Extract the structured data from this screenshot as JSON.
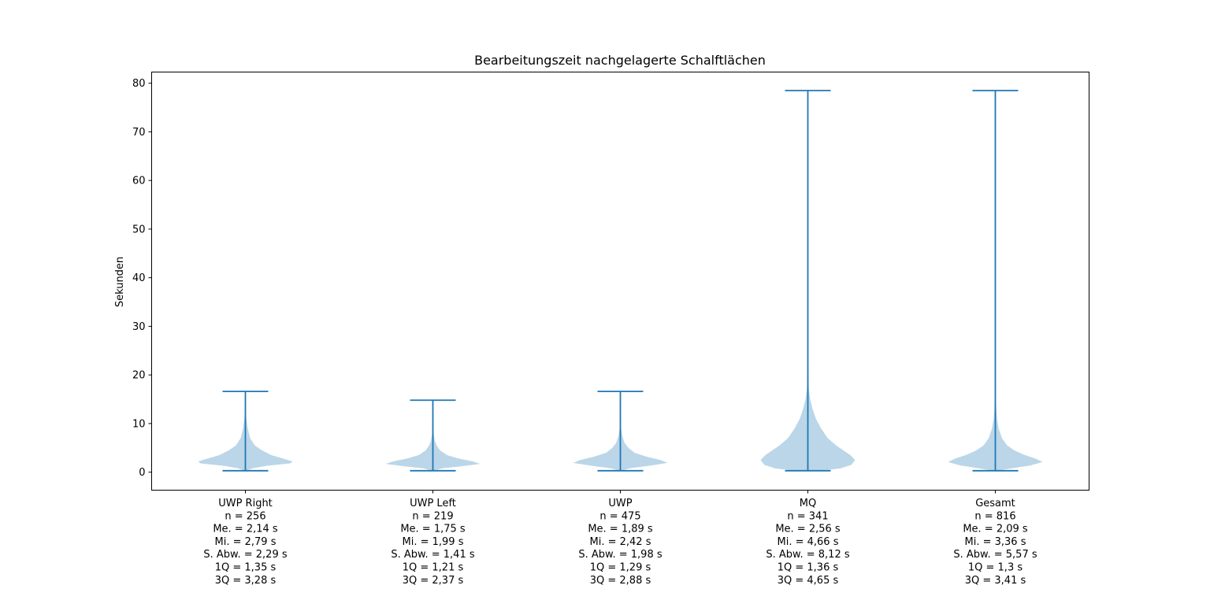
{
  "chart_data": {
    "type": "violin",
    "title": "Bearbeitungszeit nachgelagerte Schalftlächen",
    "xlabel": "",
    "ylabel": "Sekunden",
    "ylim": [
      -3.7,
      82.3
    ],
    "yticks": [
      0,
      10,
      20,
      30,
      40,
      50,
      60,
      70,
      80
    ],
    "grid": false,
    "colors": {
      "body": "#1f77b4",
      "body_alpha": 0.3,
      "line": "#1f77b4"
    },
    "categories": [
      {
        "name": "UWP Right",
        "labels": [
          "UWP Right",
          "n = 256",
          "Me. = 2,14 s",
          "Mi. = 2,79 s",
          "S. Abw. = 2,29 s",
          "1Q = 1,35 s",
          "3Q = 3,28 s"
        ],
        "min": 0.3,
        "max": 16.6,
        "density": [
          [
            0.3,
            0.02
          ],
          [
            0.8,
            0.15
          ],
          [
            1.3,
            0.45
          ],
          [
            1.8,
            0.95
          ],
          [
            2.2,
            1.0
          ],
          [
            2.8,
            0.8
          ],
          [
            3.5,
            0.55
          ],
          [
            4.5,
            0.35
          ],
          [
            5.5,
            0.2
          ],
          [
            7,
            0.1
          ],
          [
            9,
            0.05
          ],
          [
            11,
            0.02
          ],
          [
            13,
            0.01
          ],
          [
            16.6,
            0.005
          ]
        ]
      },
      {
        "name": "UWP Left",
        "labels": [
          "UWP Left",
          "n = 219",
          "Me. = 1,75 s",
          "Mi. = 1,99 s",
          "S. Abw. = 1,41 s",
          "1Q = 1,21 s",
          "3Q = 2,37 s"
        ],
        "min": 0.3,
        "max": 14.8,
        "density": [
          [
            0.3,
            0.02
          ],
          [
            0.8,
            0.2
          ],
          [
            1.2,
            0.6
          ],
          [
            1.7,
            1.0
          ],
          [
            2.2,
            0.85
          ],
          [
            2.8,
            0.55
          ],
          [
            3.5,
            0.3
          ],
          [
            4.5,
            0.15
          ],
          [
            5.5,
            0.08
          ],
          [
            6.5,
            0.04
          ],
          [
            8,
            0.015
          ],
          [
            14.8,
            0.005
          ]
        ]
      },
      {
        "name": "UWP",
        "labels": [
          "UWP",
          "n = 475",
          "Me. = 1,89 s",
          "Mi. = 2,42 s",
          "S. Abw. = 1,98 s",
          "1Q = 1,29 s",
          "3Q = 2,88 s"
        ],
        "min": 0.3,
        "max": 16.6,
        "density": [
          [
            0.3,
            0.02
          ],
          [
            0.8,
            0.2
          ],
          [
            1.3,
            0.6
          ],
          [
            1.9,
            1.0
          ],
          [
            2.5,
            0.85
          ],
          [
            3.2,
            0.55
          ],
          [
            4.0,
            0.3
          ],
          [
            5.0,
            0.17
          ],
          [
            6.0,
            0.09
          ],
          [
            7.5,
            0.04
          ],
          [
            9,
            0.015
          ],
          [
            16.6,
            0.005
          ]
        ]
      },
      {
        "name": "MQ",
        "labels": [
          "MQ",
          "n = 341",
          "Me. = 2,56 s",
          "Mi. = 4,66 s",
          "S. Abw. = 8,12 s",
          "1Q = 1,36 s",
          "3Q = 4,65 s"
        ],
        "min": 0.3,
        "max": 78.5,
        "density": [
          [
            0.3,
            0.3
          ],
          [
            0.8,
            0.7
          ],
          [
            1.5,
            0.92
          ],
          [
            2.5,
            1.0
          ],
          [
            3.5,
            0.9
          ],
          [
            4.5,
            0.75
          ],
          [
            5.5,
            0.6
          ],
          [
            7,
            0.42
          ],
          [
            9,
            0.28
          ],
          [
            11,
            0.17
          ],
          [
            13,
            0.1
          ],
          [
            15,
            0.05
          ],
          [
            17,
            0.02
          ],
          [
            20,
            0.01
          ],
          [
            30,
            0.005
          ],
          [
            50,
            0.004
          ],
          [
            78.5,
            0.003
          ]
        ]
      },
      {
        "name": "Gesamt",
        "labels": [
          "Gesamt",
          "n = 816",
          "Me. = 2,09 s",
          "Mi. = 3,36 s",
          "S. Abw. = 5,57 s",
          "1Q = 1,3 s",
          "3Q = 3,41 s"
        ],
        "min": 0.3,
        "max": 78.5,
        "density": [
          [
            0.3,
            0.05
          ],
          [
            0.8,
            0.35
          ],
          [
            1.4,
            0.75
          ],
          [
            2.1,
            1.0
          ],
          [
            2.8,
            0.85
          ],
          [
            3.6,
            0.6
          ],
          [
            4.5,
            0.4
          ],
          [
            5.5,
            0.25
          ],
          [
            7,
            0.14
          ],
          [
            9,
            0.07
          ],
          [
            11,
            0.035
          ],
          [
            13,
            0.02
          ],
          [
            16,
            0.01
          ],
          [
            25,
            0.005
          ],
          [
            50,
            0.004
          ],
          [
            78.5,
            0.003
          ]
        ]
      }
    ]
  }
}
